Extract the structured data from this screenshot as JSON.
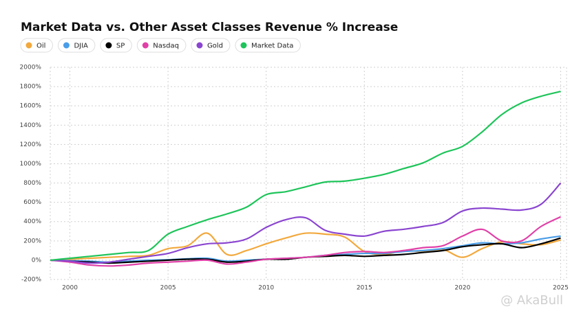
{
  "chart_data": {
    "type": "line",
    "title": "Market Data vs. Other Asset Classes Revenue % Increase",
    "watermark": "@ AkaBull",
    "x": [
      1999,
      2000,
      2001,
      2002,
      2003,
      2004,
      2005,
      2006,
      2007,
      2008,
      2009,
      2010,
      2011,
      2012,
      2013,
      2014,
      2015,
      2016,
      2017,
      2018,
      2019,
      2020,
      2021,
      2022,
      2023,
      2024,
      2025
    ],
    "series": [
      {
        "name": "Oil",
        "color": "#f2a83c",
        "values": [
          0,
          10,
          20,
          30,
          40,
          50,
          120,
          150,
          280,
          60,
          100,
          170,
          230,
          280,
          270,
          240,
          90,
          60,
          100,
          90,
          110,
          30,
          120,
          190,
          170,
          160,
          210
        ]
      },
      {
        "name": "DJIA",
        "color": "#4a9de8",
        "values": [
          0,
          -5,
          -10,
          -20,
          -10,
          0,
          5,
          15,
          20,
          -10,
          0,
          10,
          20,
          30,
          50,
          60,
          70,
          70,
          90,
          100,
          120,
          150,
          180,
          170,
          180,
          220,
          250
        ]
      },
      {
        "name": "SP",
        "color": "#000000",
        "values": [
          0,
          -10,
          -20,
          -30,
          -20,
          -10,
          0,
          10,
          10,
          -20,
          -10,
          10,
          10,
          30,
          40,
          50,
          40,
          50,
          60,
          80,
          100,
          140,
          160,
          170,
          130,
          170,
          230
        ]
      },
      {
        "name": "Nasdaq",
        "color": "#e040a8",
        "values": [
          0,
          -20,
          -50,
          -60,
          -50,
          -30,
          -20,
          -10,
          0,
          -40,
          -20,
          10,
          20,
          30,
          50,
          80,
          90,
          80,
          100,
          130,
          150,
          250,
          320,
          200,
          200,
          350,
          450
        ]
      },
      {
        "name": "Gold",
        "color": "#8a45d0",
        "values": [
          0,
          -10,
          -30,
          -20,
          10,
          40,
          70,
          130,
          170,
          180,
          220,
          340,
          420,
          440,
          310,
          270,
          250,
          300,
          320,
          350,
          390,
          510,
          540,
          530,
          520,
          580,
          800
        ]
      },
      {
        "name": "Market Data",
        "color": "#1ec45a",
        "values": [
          0,
          20,
          40,
          60,
          80,
          100,
          270,
          350,
          420,
          480,
          550,
          680,
          710,
          760,
          810,
          820,
          850,
          890,
          950,
          1010,
          1110,
          1180,
          1330,
          1510,
          1630,
          1700,
          1750
        ]
      }
    ],
    "xlim": [
      1999,
      2025.3
    ],
    "xticks": [
      2000,
      2005,
      2010,
      2015,
      2020,
      2025
    ],
    "ylim": [
      -200,
      2000
    ],
    "yticks": [
      {
        "value": -200,
        "label": "-200%"
      },
      {
        "value": 0,
        "label": "0%"
      },
      {
        "value": 200,
        "label": "200%"
      },
      {
        "value": 400,
        "label": "400%"
      },
      {
        "value": 600,
        "label": "600%"
      },
      {
        "value": 800,
        "label": "800%"
      },
      {
        "value": 1000,
        "label": "1000%"
      },
      {
        "value": 1200,
        "label": "1200%"
      },
      {
        "value": 1400,
        "label": "1400%"
      },
      {
        "value": 1600,
        "label": "1600%"
      },
      {
        "value": 1800,
        "label": "1800%"
      },
      {
        "value": 2000,
        "label": "2000%"
      }
    ],
    "grid": true
  }
}
